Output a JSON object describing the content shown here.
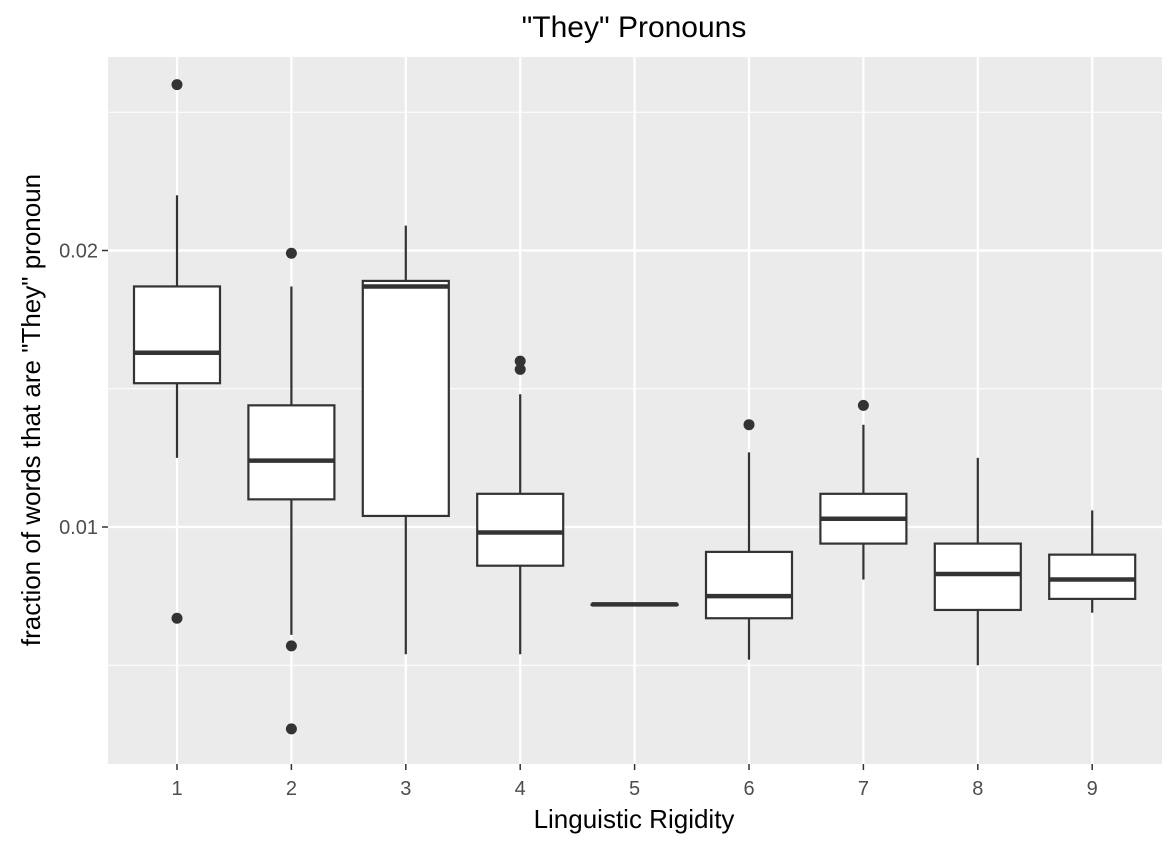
{
  "chart_data": {
    "type": "box",
    "title": "\"They\" Pronouns",
    "xlabel": "Linguistic Rigidity",
    "ylabel": "fraction of words that are \"They\" pronoun",
    "categories": [
      "1",
      "2",
      "3",
      "4",
      "5",
      "6",
      "7",
      "8",
      "9"
    ],
    "y_ticks": [
      {
        "value": 0.01,
        "label": "0.01"
      },
      {
        "value": 0.02,
        "label": "0.02"
      }
    ],
    "y_minor_gridlines": [
      0.005,
      0.015,
      0.025
    ],
    "ylim": [
      0.00125,
      0.0269
    ],
    "grid": true,
    "colors": {
      "panel_background": "#ebebeb",
      "grid": "#ffffff",
      "box_fill": "#ffffff",
      "box_stroke": "#333333",
      "outlier": "#333333"
    },
    "boxes": [
      {
        "category": "1",
        "lower_whisker": 0.0125,
        "q1": 0.0152,
        "median": 0.0163,
        "q3": 0.0187,
        "upper_whisker": 0.022,
        "outliers": [
          0.026,
          0.0067
        ]
      },
      {
        "category": "2",
        "lower_whisker": 0.0061,
        "q1": 0.011,
        "median": 0.0124,
        "q3": 0.0144,
        "upper_whisker": 0.0187,
        "outliers": [
          0.0199,
          0.0057,
          0.0027
        ]
      },
      {
        "category": "3",
        "lower_whisker": 0.0054,
        "q1": 0.0104,
        "median": 0.0187,
        "q3": 0.0189,
        "upper_whisker": 0.0209,
        "outliers": []
      },
      {
        "category": "4",
        "lower_whisker": 0.0054,
        "q1": 0.0086,
        "median": 0.0098,
        "q3": 0.0112,
        "upper_whisker": 0.0148,
        "outliers": [
          0.016,
          0.0157
        ]
      },
      {
        "category": "5",
        "lower_whisker": 0.0072,
        "q1": 0.0072,
        "median": 0.0072,
        "q3": 0.0072,
        "upper_whisker": 0.0072,
        "outliers": []
      },
      {
        "category": "6",
        "lower_whisker": 0.0052,
        "q1": 0.0067,
        "median": 0.0075,
        "q3": 0.0091,
        "upper_whisker": 0.0127,
        "outliers": [
          0.0137
        ]
      },
      {
        "category": "7",
        "lower_whisker": 0.0081,
        "q1": 0.0094,
        "median": 0.0103,
        "q3": 0.0112,
        "upper_whisker": 0.0137,
        "outliers": [
          0.0144
        ]
      },
      {
        "category": "8",
        "lower_whisker": 0.005,
        "q1": 0.007,
        "median": 0.0083,
        "q3": 0.0094,
        "upper_whisker": 0.0125,
        "outliers": []
      },
      {
        "category": "9",
        "lower_whisker": 0.0069,
        "q1": 0.0074,
        "median": 0.0081,
        "q3": 0.009,
        "upper_whisker": 0.0106,
        "outliers": []
      }
    ]
  }
}
